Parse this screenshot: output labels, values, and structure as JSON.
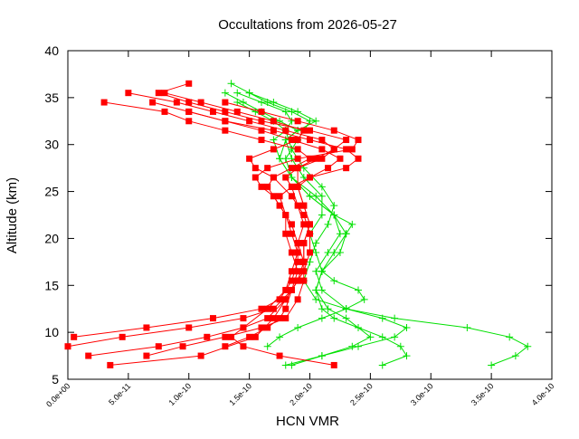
{
  "chart_data": {
    "type": "line",
    "title": "Occultations from 2026-05-27",
    "xlabel": "HCN VMR",
    "ylabel": "Altitude (km)",
    "xlim": [
      0,
      4e-10
    ],
    "ylim": [
      5,
      40
    ],
    "grid": false,
    "legend": "none",
    "x_ticks": [
      0,
      5e-11,
      1e-10,
      1.5e-10,
      2e-10,
      2.5e-10,
      3e-10,
      3.5e-10,
      4e-10
    ],
    "x_tick_labels": [
      "0.0e+00",
      "5.0e-11",
      "1.0e-10",
      "1.5e-10",
      "2.0e-10",
      "2.5e-10",
      "3.0e-10",
      "3.5e-10",
      "4.0e-10"
    ],
    "y_ticks": [
      5,
      10,
      15,
      20,
      25,
      30,
      35,
      40
    ],
    "y_tick_labels": [
      "5",
      "10",
      "15",
      "20",
      "25",
      "30",
      "35",
      "40"
    ],
    "colors": {
      "red": "#ff0000",
      "green": "#00e000"
    },
    "series": [
      {
        "color": "red",
        "marker": "square",
        "x": [
          3.5e-11,
          1.1e-10,
          1.55e-10,
          1.7e-10,
          1.8e-10,
          1.9e-10,
          1.95e-10,
          1.95e-10,
          2e-10,
          1.95e-10,
          1.9e-10,
          1.9e-10,
          2.1e-10,
          2.2e-10,
          2.3e-10,
          2e-10,
          1.6e-10,
          1.3e-10,
          1e-10,
          7.5e-11,
          1e-10
        ],
        "y": [
          6.5,
          7.5,
          9.5,
          11.5,
          13.5,
          15.5,
          17.5,
          19.5,
          21.5,
          23.5,
          25.5,
          27.5,
          28.5,
          29.5,
          30.5,
          31.5,
          32.5,
          33.5,
          34.5,
          35.5,
          36.5
        ]
      },
      {
        "color": "red",
        "marker": "square",
        "x": [
          5e-12,
          6.5e-11,
          1.2e-10,
          1.6e-10,
          1.75e-10,
          1.85e-10,
          1.9e-10,
          1.9e-10,
          1.95e-10,
          1.9e-10,
          1.85e-10,
          1.8e-10,
          1.9e-10,
          2.05e-10,
          2.2e-10,
          2.1e-10,
          1.8e-10,
          1.5e-10,
          1.2e-10,
          9e-11,
          5e-11
        ],
        "y": [
          9.5,
          10.5,
          11.5,
          12.5,
          13.5,
          15.5,
          17.5,
          19.5,
          21.5,
          23.5,
          25.5,
          26.5,
          27.5,
          28.5,
          29.5,
          30.5,
          31.5,
          32.5,
          33.5,
          34.5,
          35.5
        ]
      },
      {
        "color": "red",
        "marker": "square",
        "x": [
          0,
          4.5e-11,
          1e-10,
          1.45e-10,
          1.7e-10,
          1.85e-10,
          1.95e-10,
          2e-10,
          2e-10,
          1.95e-10,
          1.85e-10,
          1.7e-10,
          1.55e-10,
          1.5e-10,
          1.7e-10,
          1.9e-10,
          1.95e-10,
          1.7e-10,
          1.4e-10,
          1.1e-10,
          8e-11
        ],
        "y": [
          8.5,
          9.5,
          10.5,
          11.5,
          12.5,
          14.5,
          16.5,
          18.5,
          20.5,
          22.5,
          24.5,
          26.5,
          27.5,
          28.5,
          29.5,
          30.5,
          31.5,
          32.5,
          33.5,
          34.5,
          35.5
        ]
      },
      {
        "color": "red",
        "marker": "square",
        "x": [
          1.7e-11,
          7.5e-11,
          1.15e-10,
          1.45e-10,
          1.65e-10,
          1.8e-10,
          1.9e-10,
          1.95e-10,
          1.95e-10,
          2e-10,
          1.95e-10,
          1.9e-10,
          2e-10,
          2.15e-10,
          2.25e-10,
          2.1e-10,
          1.85e-10,
          1.6e-10,
          1.3e-10,
          1e-10,
          7e-11
        ],
        "y": [
          7.5,
          8.5,
          9.5,
          10.5,
          11.5,
          13.5,
          15.5,
          17.5,
          19.5,
          21.5,
          23.5,
          25.5,
          26.5,
          27.5,
          28.5,
          29.5,
          30.5,
          31.5,
          32.5,
          33.5,
          34.5
        ]
      },
      {
        "color": "red",
        "marker": "square",
        "x": [
          6.5e-11,
          9.5e-11,
          1.3e-10,
          1.6e-10,
          1.8e-10,
          1.9e-10,
          1.95e-10,
          1.95e-10,
          1.9e-10,
          1.85e-10,
          1.75e-10,
          1.65e-10,
          1.7e-10,
          1.85e-10,
          2e-10,
          1.9e-10,
          1.6e-10,
          1.3e-10,
          1e-10,
          8e-11,
          3e-11
        ],
        "y": [
          7.5,
          8.5,
          9.5,
          10.5,
          11.5,
          13.5,
          15.5,
          17.5,
          19.5,
          21.5,
          23.5,
          25.5,
          26.5,
          27.5,
          28.5,
          29.5,
          30.5,
          31.5,
          32.5,
          33.5,
          34.5
        ]
      },
      {
        "color": "red",
        "marker": "square",
        "x": [
          2.2e-10,
          1.75e-10,
          1.45e-10,
          1.35e-10,
          1.45e-10,
          1.65e-10,
          1.8e-10,
          1.85e-10,
          1.9e-10,
          1.85e-10,
          1.8e-10,
          1.75e-10,
          1.85e-10,
          2e-10,
          2.3e-10,
          2.4e-10,
          2.3e-10,
          2e-10,
          1.7e-10,
          1.3e-10,
          1e-10
        ],
        "y": [
          6.5,
          7.5,
          8.5,
          9.5,
          10.5,
          12.5,
          14.5,
          16.5,
          18.5,
          20.5,
          22.5,
          24.5,
          25.5,
          26.5,
          27.5,
          28.5,
          29.5,
          30.5,
          31.5,
          32.5,
          33.5
        ]
      },
      {
        "color": "red",
        "marker": "square",
        "x": [
          1.3e-10,
          1.5e-10,
          1.65e-10,
          1.75e-10,
          1.8e-10,
          1.85e-10,
          1.9e-10,
          1.85e-10,
          1.8e-10,
          1.8e-10,
          1.7e-10,
          1.6e-10,
          1.55e-10,
          1.65e-10,
          1.9e-10,
          2.35e-10,
          2.4e-10,
          2.2e-10,
          1.9e-10,
          1.6e-10,
          1.3e-10
        ],
        "y": [
          8.5,
          9.5,
          10.5,
          11.5,
          12.5,
          14.5,
          16.5,
          18.5,
          20.5,
          22.5,
          24.5,
          25.5,
          26.5,
          27.5,
          28.5,
          29.5,
          30.5,
          31.5,
          32.5,
          33.5,
          34.5
        ]
      },
      {
        "color": "green",
        "marker": "plus",
        "x": [
          1.8e-10,
          2.1e-10,
          2.4e-10,
          2.7e-10,
          2.8e-10,
          2.6e-10,
          2.3e-10,
          2.1e-10,
          2.05e-10,
          2.15e-10,
          2.25e-10,
          2.2e-10,
          2.05e-10,
          1.85e-10,
          1.8e-10,
          1.9e-10,
          2e-10,
          1.85e-10,
          1.65e-10,
          1.5e-10,
          1.35e-10
        ],
        "y": [
          6.5,
          7.5,
          8.5,
          9.5,
          10.5,
          11.5,
          12.5,
          14.5,
          16.5,
          18.5,
          20.5,
          22.5,
          24.5,
          26.5,
          28.5,
          30.5,
          32.5,
          33.5,
          34.5,
          35.5,
          36.5
        ]
      },
      {
        "color": "green",
        "marker": "plus",
        "x": [
          3.5e-10,
          3.7e-10,
          3.8e-10,
          3.65e-10,
          3.3e-10,
          2.7e-10,
          2.3e-10,
          2.05e-10,
          1.95e-10,
          2e-10,
          2.05e-10,
          2.15e-10,
          2.2e-10,
          2.1e-10,
          1.95e-10,
          1.85e-10,
          1.8e-10,
          1.85e-10,
          1.8e-10,
          1.6e-10,
          1.4e-10
        ],
        "y": [
          6.5,
          7.5,
          8.5,
          9.5,
          10.5,
          11.5,
          12.5,
          13.5,
          15.5,
          17.5,
          19.5,
          21.5,
          23.5,
          25.5,
          27.5,
          29.5,
          31.5,
          32.5,
          33.5,
          34.5,
          35.5
        ]
      },
      {
        "color": "green",
        "marker": "plus",
        "x": [
          2.6e-10,
          2.8e-10,
          2.75e-10,
          2.6e-10,
          2.4e-10,
          2.2e-10,
          2.1e-10,
          2.05e-10,
          2.1e-10,
          2.25e-10,
          2.3e-10,
          2.2e-10,
          2e-10,
          1.85e-10,
          1.75e-10,
          1.8e-10,
          1.9e-10,
          1.75e-10,
          1.6e-10,
          1.45e-10,
          1.3e-10
        ],
        "y": [
          6.5,
          7.5,
          8.5,
          9.5,
          10.5,
          11.5,
          12.5,
          14.5,
          16.5,
          18.5,
          20.5,
          22.5,
          24.5,
          26.5,
          28.5,
          30.5,
          31.5,
          32.5,
          33.5,
          34.5,
          35.5
        ]
      },
      {
        "color": "green",
        "marker": "plus",
        "x": [
          1.65e-10,
          1.75e-10,
          1.9e-10,
          2.1e-10,
          2.3e-10,
          2.45e-10,
          2.4e-10,
          2.2e-10,
          2.1e-10,
          2.05e-10,
          2e-10,
          2.1e-10,
          2.1e-10,
          1.95e-10,
          1.85e-10,
          1.8e-10,
          1.9e-10,
          2.05e-10,
          1.9e-10,
          1.7e-10,
          1.5e-10
        ],
        "y": [
          8.5,
          9.5,
          10.5,
          11.5,
          12.5,
          13.5,
          14.5,
          15.5,
          16.5,
          18.5,
          20.5,
          22.5,
          24.5,
          26.5,
          28.5,
          30.5,
          31.5,
          32.5,
          33.5,
          34.5,
          35.5
        ]
      },
      {
        "color": "green",
        "marker": "plus",
        "x": [
          1.85e-10,
          2.1e-10,
          2.35e-10,
          2.5e-10,
          2.4e-10,
          2.3e-10,
          2.15e-10,
          2.05e-10,
          2.1e-10,
          2.2e-10,
          2.3e-10,
          2.35e-10,
          2.2e-10,
          2e-10,
          1.85e-10,
          1.75e-10,
          1.7e-10,
          1.8e-10,
          1.7e-10,
          1.55e-10,
          1.4e-10
        ],
        "y": [
          6.5,
          7.5,
          8.5,
          9.5,
          10.5,
          11.5,
          12.5,
          14.5,
          16.5,
          18.5,
          20.5,
          21.5,
          22.5,
          24.5,
          26.5,
          28.5,
          30.5,
          31.5,
          32.5,
          33.5,
          34.5
        ]
      }
    ]
  }
}
